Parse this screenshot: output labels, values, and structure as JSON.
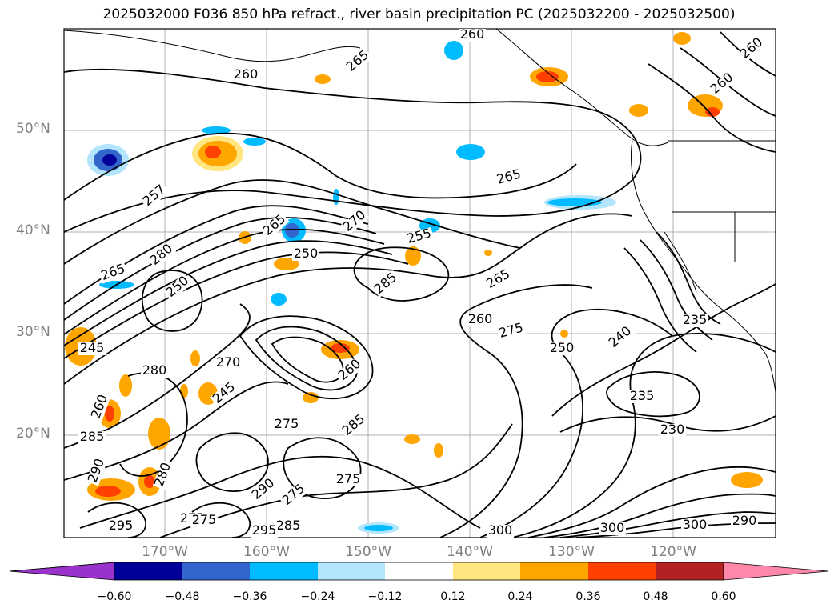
{
  "title": "2025032000 F036 850 hPa refract., river basin precipitation PC (2025032200 - 2025032500)",
  "latitude_labels": [
    "50°N",
    "40°N",
    "30°N",
    "20°N"
  ],
  "longitude_labels": [
    "170°W",
    "160°W",
    "150°W",
    "140°W",
    "130°W",
    "120°W"
  ],
  "colorbar": {
    "ticks": [
      "−0.60",
      "−0.48",
      "−0.36",
      "−0.24",
      "−0.12",
      "0.12",
      "0.24",
      "0.36",
      "0.48",
      "0.60"
    ],
    "colors": [
      "#9933cc",
      "#000099",
      "#3366cc",
      "#00bbff",
      "#b3e5fc",
      "#ffffff",
      "#ffe680",
      "#ffa500",
      "#ff4000",
      "#b22222",
      "#ff88aa"
    ]
  },
  "contour_labels": [
    "260",
    "265",
    "260",
    "260",
    "260",
    "265",
    "257",
    "280",
    "265",
    "270",
    "250",
    "265",
    "255",
    "265",
    "285",
    "250",
    "260",
    "275",
    "250",
    "240",
    "235",
    "245",
    "270",
    "280",
    "245",
    "260",
    "235",
    "275",
    "285",
    "230",
    "260",
    "285",
    "290",
    "275",
    "290",
    "275",
    "300",
    "300",
    "300",
    "290",
    "275",
    "285",
    "280",
    "295",
    "275",
    "295"
  ]
}
